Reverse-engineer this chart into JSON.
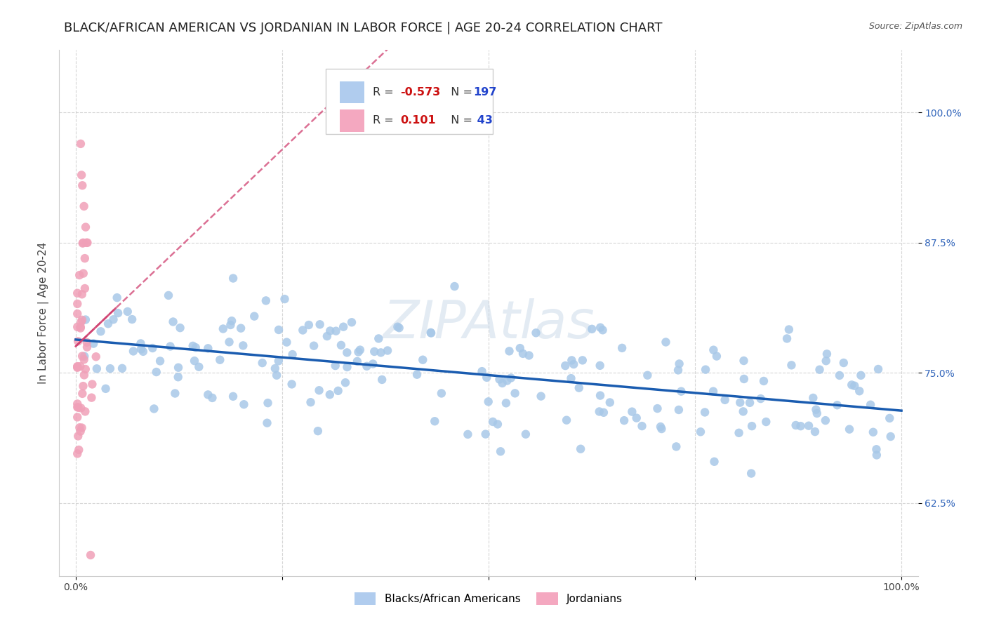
{
  "title": "BLACK/AFRICAN AMERICAN VS JORDANIAN IN LABOR FORCE | AGE 20-24 CORRELATION CHART",
  "source": "Source: ZipAtlas.com",
  "ylabel": "In Labor Force | Age 20-24",
  "watermark": "ZIPAtlas",
  "blue_R": "-0.573",
  "blue_N": "197",
  "pink_R": "0.101",
  "pink_N": "43",
  "blue_color": "#a8c8e8",
  "pink_color": "#f0a0b8",
  "blue_line_color": "#1a5cb0",
  "pink_line_color": "#d04070",
  "legend_blue_label": "Blacks/African Americans",
  "legend_pink_label": "Jordanians",
  "xlim": [
    -0.02,
    1.02
  ],
  "ylim": [
    0.555,
    1.06
  ],
  "y_ticks": [
    0.625,
    0.75,
    0.875,
    1.0
  ],
  "y_tick_labels": [
    "62.5%",
    "75.0%",
    "87.5%",
    "100.0%"
  ],
  "x_ticks": [
    0.0,
    0.25,
    0.5,
    0.75,
    1.0
  ],
  "x_tick_labels": [
    "0.0%",
    "",
    "",
    "",
    "100.0%"
  ],
  "background_color": "#ffffff",
  "grid_color": "#cccccc",
  "title_fontsize": 13,
  "axis_label_fontsize": 11,
  "tick_fontsize": 10,
  "seed": 42
}
